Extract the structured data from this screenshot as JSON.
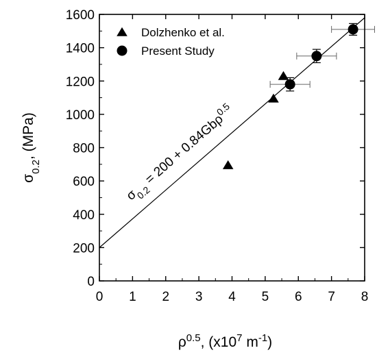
{
  "chart_data": {
    "type": "scatter",
    "xlabel": {
      "base": "ρ",
      "sup": "0.5",
      "rest": ", (x10",
      "sup2": "7",
      "rest2": " m",
      "sup3": "-1",
      "close": ")"
    },
    "ylabel": {
      "base": "σ",
      "sub": "0.2",
      "rest": ", (MPa)"
    },
    "xlim": [
      0,
      8
    ],
    "ylim": [
      0,
      1600
    ],
    "xticks": [
      "0",
      "1",
      "2",
      "3",
      "4",
      "5",
      "6",
      "7",
      "8"
    ],
    "yticks": [
      "0",
      "200",
      "400",
      "600",
      "800",
      "1000",
      "1200",
      "1400",
      "1600"
    ],
    "grid": false,
    "legend_position": "top-left",
    "series": [
      {
        "name": "Dolzhenko et al.",
        "marker": "triangle",
        "points": [
          {
            "x": 3.88,
            "y": 695
          },
          {
            "x": 5.25,
            "y": 1095
          },
          {
            "x": 5.55,
            "y": 1230
          }
        ]
      },
      {
        "name": "Present Study",
        "marker": "circle",
        "points": [
          {
            "x": 5.75,
            "y": 1180,
            "xerr": 0.6,
            "yerr": 40
          },
          {
            "x": 6.55,
            "y": 1350,
            "xerr": 0.6,
            "yerr": 40
          },
          {
            "x": 7.65,
            "y": 1510,
            "xerr": 0.65,
            "yerr": 35
          }
        ]
      }
    ],
    "fit_line": {
      "intercept": 200,
      "slope": 172.5
    },
    "annotation": {
      "sigma": "σ",
      "sub": "0.2",
      "mid": " = 200 + 0.84Gbρ",
      "sup": "0.5"
    }
  }
}
